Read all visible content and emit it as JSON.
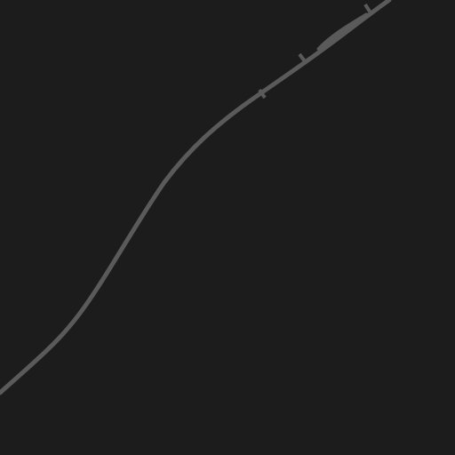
{
  "map": {
    "theme": "dark",
    "colors": {
      "background": "#1c1c1c",
      "route": "#5a5a5a"
    },
    "features": {
      "route": "railway-line",
      "markers": [
        "rail-tick-marker",
        "rail-tick-marker",
        "rail-tick-marker"
      ],
      "junction": "rail-siding"
    }
  }
}
